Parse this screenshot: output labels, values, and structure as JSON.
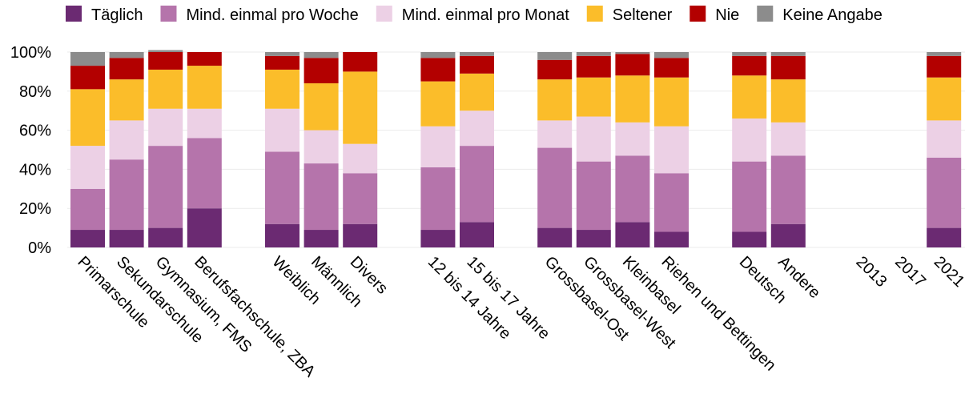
{
  "chart_data": {
    "type": "stacked_bar",
    "categories": [
      "Primarschule",
      "Sekundarschule",
      "Gymnasium, FMS",
      "Berufsfachschule, ZBA",
      null,
      "Weiblich",
      "Männlich",
      "Divers",
      null,
      "12 bis 14 Jahre",
      "15 bis 17 Jahre",
      null,
      "Grossbasel-Ost",
      "Grossbasel-West",
      "Kleinbasel",
      "Riehen und Bettingen",
      null,
      "Deutsch",
      "Andere",
      null,
      "2013",
      "2017",
      "2021"
    ],
    "series": [
      {
        "name": "Täglich",
        "color": "#6b2a72",
        "values": [
          9,
          9,
          10,
          20,
          null,
          12,
          9,
          12,
          null,
          9,
          13,
          null,
          10,
          9,
          13,
          8,
          null,
          8,
          12,
          null,
          null,
          null,
          10
        ]
      },
      {
        "name": "Mind. einmal pro Woche",
        "color": "#b574ab",
        "values": [
          21,
          36,
          42,
          36,
          null,
          37,
          34,
          26,
          null,
          32,
          39,
          null,
          41,
          35,
          34,
          30,
          null,
          36,
          35,
          null,
          null,
          null,
          36
        ]
      },
      {
        "name": "Mind. einmal pro Monat",
        "color": "#ecd0e5",
        "values": [
          22,
          20,
          19,
          15,
          null,
          22,
          17,
          15,
          null,
          21,
          18,
          null,
          14,
          23,
          17,
          24,
          null,
          22,
          17,
          null,
          null,
          null,
          19
        ]
      },
      {
        "name": "Seltener",
        "color": "#fbbd2a",
        "values": [
          29,
          21,
          20,
          22,
          null,
          20,
          24,
          37,
          null,
          23,
          19,
          null,
          21,
          20,
          24,
          25,
          null,
          22,
          22,
          null,
          null,
          null,
          22
        ]
      },
      {
        "name": "Nie",
        "color": "#b30000",
        "values": [
          12,
          11,
          9,
          7,
          null,
          7,
          13,
          10,
          null,
          12,
          9,
          null,
          10,
          11,
          11,
          10,
          null,
          10,
          12,
          null,
          null,
          null,
          11
        ]
      },
      {
        "name": "Keine Angabe",
        "color": "#8c8c8c",
        "values": [
          7,
          3,
          1,
          0,
          null,
          2,
          3,
          0,
          null,
          3,
          2,
          null,
          4,
          2,
          1,
          3,
          null,
          2,
          2,
          null,
          null,
          null,
          2
        ]
      }
    ],
    "ylim": [
      0,
      100
    ],
    "yticks": [
      {
        "value": 0,
        "label": "0%"
      },
      {
        "value": 20,
        "label": "20%"
      },
      {
        "value": 40,
        "label": "40%"
      },
      {
        "value": 60,
        "label": "60%"
      },
      {
        "value": 80,
        "label": "80%"
      },
      {
        "value": 100,
        "label": "100%"
      }
    ],
    "grid": true,
    "legend": "top"
  }
}
